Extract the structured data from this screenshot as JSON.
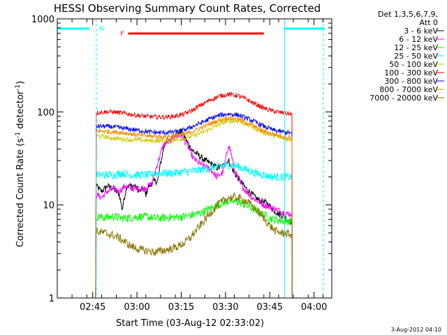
{
  "chart_data": {
    "type": "line",
    "title": "HESSI Observing Summary Count Rates, Corrected",
    "ylabel_parts": {
      "main": "Corrected Count Rate (s",
      "sup1": "-1",
      "mid": " detector",
      "sup2": "-1",
      "end": ")"
    },
    "xlabel": "Start Time (03-Aug-12 02:33:02)",
    "date_stamp": "3-Aug-2012 04:10",
    "y_scale": "log",
    "ylim": [
      1,
      1000
    ],
    "xlim_minutes_after_start": [
      0,
      93
    ],
    "y_tick_labels": [
      "1",
      "10",
      "100",
      "1000"
    ],
    "y_ticks": [
      1,
      10,
      100,
      1000
    ],
    "x_ticks": [
      {
        "label": "02:45",
        "t": 12
      },
      {
        "label": "03:00",
        "t": 27
      },
      {
        "label": "03:15",
        "t": 42
      },
      {
        "label": "03:30",
        "t": 57
      },
      {
        "label": "03:45",
        "t": 72
      },
      {
        "label": "04:00",
        "t": 87
      }
    ],
    "legend_header": [
      "Det 1,3,5,6,7,9,",
      "Att 0"
    ],
    "series": [
      {
        "name": "3 - 6 keV",
        "color": "#000000",
        "points": [
          [
            13,
            1
          ],
          [
            13.2,
            16
          ],
          [
            15,
            14
          ],
          [
            17,
            16
          ],
          [
            19,
            15
          ],
          [
            21,
            13
          ],
          [
            22,
            9
          ],
          [
            23.5,
            16
          ],
          [
            26,
            16
          ],
          [
            28,
            14
          ],
          [
            29,
            15
          ],
          [
            30,
            13
          ],
          [
            31,
            16
          ],
          [
            32,
            17
          ],
          [
            33,
            18
          ],
          [
            34,
            18
          ],
          [
            35,
            28
          ],
          [
            36,
            40
          ],
          [
            37,
            50
          ],
          [
            38,
            48
          ],
          [
            39,
            55
          ],
          [
            40,
            58
          ],
          [
            41,
            60
          ],
          [
            42,
            62
          ],
          [
            43,
            55
          ],
          [
            44,
            48
          ],
          [
            45,
            42
          ],
          [
            46,
            38
          ],
          [
            47,
            36
          ],
          [
            48,
            34
          ],
          [
            50,
            30
          ],
          [
            52,
            28
          ],
          [
            54,
            25
          ],
          [
            56,
            26
          ],
          [
            58,
            30
          ],
          [
            59,
            26
          ],
          [
            60,
            22
          ],
          [
            62,
            18
          ],
          [
            64,
            15
          ],
          [
            66,
            13
          ],
          [
            67,
            12
          ],
          [
            69,
            11
          ],
          [
            71,
            10.5
          ],
          [
            73,
            9
          ],
          [
            75,
            8
          ],
          [
            77,
            7.5
          ],
          [
            78,
            7
          ],
          [
            79.5,
            6.5
          ],
          [
            79.6,
            1
          ]
        ]
      },
      {
        "name": "6 - 12 keV",
        "color": "#ff00ff",
        "points": [
          [
            13,
            1
          ],
          [
            13.2,
            13
          ],
          [
            15,
            12
          ],
          [
            17,
            14
          ],
          [
            19,
            15
          ],
          [
            21,
            14
          ],
          [
            23,
            16
          ],
          [
            25,
            15
          ],
          [
            27,
            15
          ],
          [
            29,
            15
          ],
          [
            31,
            16
          ],
          [
            32,
            17
          ],
          [
            33,
            22
          ],
          [
            34,
            28
          ],
          [
            35,
            36
          ],
          [
            36,
            44
          ],
          [
            37,
            48
          ],
          [
            38,
            47
          ],
          [
            39,
            52
          ],
          [
            40,
            55
          ],
          [
            41,
            55
          ],
          [
            42,
            56
          ],
          [
            43,
            50
          ],
          [
            44,
            44
          ],
          [
            45,
            38
          ],
          [
            46,
            32
          ],
          [
            47,
            30
          ],
          [
            48,
            28
          ],
          [
            50,
            26
          ],
          [
            52,
            24
          ],
          [
            54,
            20
          ],
          [
            56,
            22
          ],
          [
            57,
            30
          ],
          [
            58,
            45
          ],
          [
            59,
            35
          ],
          [
            60,
            24
          ],
          [
            62,
            17
          ],
          [
            64,
            14
          ],
          [
            66,
            12
          ],
          [
            68,
            11
          ],
          [
            70,
            10
          ],
          [
            72,
            9.5
          ],
          [
            74,
            9
          ],
          [
            76,
            8.5
          ],
          [
            78,
            8
          ],
          [
            79.5,
            8
          ],
          [
            79.6,
            1
          ]
        ]
      },
      {
        "name": "12 - 25 keV",
        "color": "#00ff00",
        "points": [
          [
            13,
            1
          ],
          [
            13.2,
            7.5
          ],
          [
            16,
            7.3
          ],
          [
            19,
            7.5
          ],
          [
            22,
            7.2
          ],
          [
            25,
            7.3
          ],
          [
            28,
            7.5
          ],
          [
            31,
            7.4
          ],
          [
            34,
            7.2
          ],
          [
            37,
            7.3
          ],
          [
            40,
            7.4
          ],
          [
            43,
            7.5
          ],
          [
            46,
            7.8
          ],
          [
            49,
            8.3
          ],
          [
            52,
            9.2
          ],
          [
            55,
            10.2
          ],
          [
            58,
            11
          ],
          [
            61,
            10.8
          ],
          [
            64,
            10
          ],
          [
            67,
            8.8
          ],
          [
            70,
            7.8
          ],
          [
            73,
            7
          ],
          [
            76,
            6.8
          ],
          [
            79.5,
            6.6
          ],
          [
            79.6,
            1
          ]
        ]
      },
      {
        "name": "25 - 50 keV",
        "color": "#00ffff",
        "points": [
          [
            13,
            1
          ],
          [
            13.2,
            21
          ],
          [
            16,
            21
          ],
          [
            19,
            21
          ],
          [
            22,
            22
          ],
          [
            25,
            21
          ],
          [
            28,
            21
          ],
          [
            31,
            21
          ],
          [
            34,
            22
          ],
          [
            37,
            22
          ],
          [
            40,
            22
          ],
          [
            43,
            23
          ],
          [
            46,
            23
          ],
          [
            49,
            24
          ],
          [
            52,
            25
          ],
          [
            55,
            26
          ],
          [
            58,
            27
          ],
          [
            61,
            26
          ],
          [
            64,
            24
          ],
          [
            67,
            22
          ],
          [
            70,
            21
          ],
          [
            73,
            20
          ],
          [
            76,
            20
          ],
          [
            79.5,
            20
          ],
          [
            79.6,
            1
          ]
        ]
      },
      {
        "name": "50 - 100 keV",
        "color": "#cccc00",
        "points": [
          [
            13,
            1
          ],
          [
            13.2,
            55
          ],
          [
            16,
            54
          ],
          [
            19,
            52
          ],
          [
            22,
            51
          ],
          [
            25,
            50
          ],
          [
            28,
            50
          ],
          [
            31,
            49
          ],
          [
            34,
            49
          ],
          [
            37,
            49
          ],
          [
            40,
            50
          ],
          [
            43,
            52
          ],
          [
            46,
            55
          ],
          [
            49,
            60
          ],
          [
            52,
            66
          ],
          [
            55,
            74
          ],
          [
            58,
            80
          ],
          [
            61,
            80
          ],
          [
            64,
            74
          ],
          [
            67,
            66
          ],
          [
            70,
            60
          ],
          [
            73,
            56
          ],
          [
            76,
            52
          ],
          [
            79.5,
            50
          ],
          [
            79.6,
            1
          ]
        ]
      },
      {
        "name": "100 - 300 keV",
        "color": "#ff0000",
        "points": [
          [
            13,
            1
          ],
          [
            13.2,
            98
          ],
          [
            16,
            100
          ],
          [
            19,
            100
          ],
          [
            22,
            97
          ],
          [
            25,
            94
          ],
          [
            28,
            91
          ],
          [
            31,
            89
          ],
          [
            34,
            88
          ],
          [
            37,
            88
          ],
          [
            40,
            90
          ],
          [
            43,
            95
          ],
          [
            46,
            105
          ],
          [
            49,
            120
          ],
          [
            52,
            135
          ],
          [
            55,
            148
          ],
          [
            58,
            155
          ],
          [
            61,
            150
          ],
          [
            64,
            137
          ],
          [
            67,
            122
          ],
          [
            70,
            110
          ],
          [
            73,
            102
          ],
          [
            76,
            98
          ],
          [
            79.5,
            95
          ],
          [
            79.6,
            1
          ]
        ]
      },
      {
        "name": "300 - 800 keV",
        "color": "#0000ff",
        "points": [
          [
            13,
            1
          ],
          [
            13.2,
            70
          ],
          [
            16,
            70
          ],
          [
            19,
            69
          ],
          [
            22,
            67
          ],
          [
            25,
            65
          ],
          [
            28,
            63
          ],
          [
            31,
            61
          ],
          [
            34,
            60
          ],
          [
            37,
            60
          ],
          [
            40,
            61
          ],
          [
            43,
            64
          ],
          [
            46,
            70
          ],
          [
            49,
            77
          ],
          [
            52,
            85
          ],
          [
            55,
            92
          ],
          [
            58,
            95
          ],
          [
            61,
            93
          ],
          [
            64,
            86
          ],
          [
            67,
            78
          ],
          [
            70,
            70
          ],
          [
            73,
            64
          ],
          [
            76,
            61
          ],
          [
            79.5,
            59
          ],
          [
            79.6,
            1
          ]
        ]
      },
      {
        "name": "800 - 7000 keV",
        "color": "#ff8c00",
        "points": [
          [
            13,
            1
          ],
          [
            13.2,
            62
          ],
          [
            16,
            62
          ],
          [
            19,
            61
          ],
          [
            22,
            60
          ],
          [
            25,
            58
          ],
          [
            28,
            56
          ],
          [
            31,
            55
          ],
          [
            34,
            54
          ],
          [
            37,
            54
          ],
          [
            40,
            55
          ],
          [
            43,
            57
          ],
          [
            46,
            62
          ],
          [
            49,
            68
          ],
          [
            52,
            75
          ],
          [
            55,
            82
          ],
          [
            58,
            86
          ],
          [
            61,
            84
          ],
          [
            64,
            77
          ],
          [
            67,
            69
          ],
          [
            70,
            62
          ],
          [
            73,
            58
          ],
          [
            76,
            55
          ],
          [
            79.5,
            53
          ],
          [
            79.6,
            1
          ]
        ]
      },
      {
        "name": "7000 - 20000 keV",
        "color": "#8b7500",
        "points": [
          [
            13,
            1
          ],
          [
            13.2,
            5.2
          ],
          [
            16,
            5
          ],
          [
            18,
            4.8
          ],
          [
            20,
            4.6
          ],
          [
            22,
            4.2
          ],
          [
            25,
            3.6
          ],
          [
            28,
            3.3
          ],
          [
            31,
            3.2
          ],
          [
            33,
            3.1
          ],
          [
            35,
            3.2
          ],
          [
            37,
            3.3
          ],
          [
            39,
            3.4
          ],
          [
            41,
            3.6
          ],
          [
            43,
            3.9
          ],
          [
            45,
            4.4
          ],
          [
            47,
            5.3
          ],
          [
            49,
            6.3
          ],
          [
            51,
            7.6
          ],
          [
            53,
            9
          ],
          [
            55,
            10.4
          ],
          [
            58,
            12
          ],
          [
            61,
            12
          ],
          [
            64,
            11
          ],
          [
            66,
            9.8
          ],
          [
            68,
            8.5
          ],
          [
            70,
            7.2
          ],
          [
            72,
            6
          ],
          [
            74,
            5.2
          ],
          [
            76,
            5
          ],
          [
            79.5,
            4.8
          ],
          [
            79.6,
            1
          ]
        ]
      }
    ],
    "annotations": {
      "N": {
        "label": "N",
        "t_start": 0,
        "t_end": 13.2,
        "color": "#00ffff"
      },
      "N2": {
        "t_start": 77,
        "t_end": 93,
        "color": "#00ffff"
      },
      "F": {
        "label": "F",
        "t_start": 24,
        "t_end": 70,
        "color": "#ff0000"
      }
    }
  }
}
